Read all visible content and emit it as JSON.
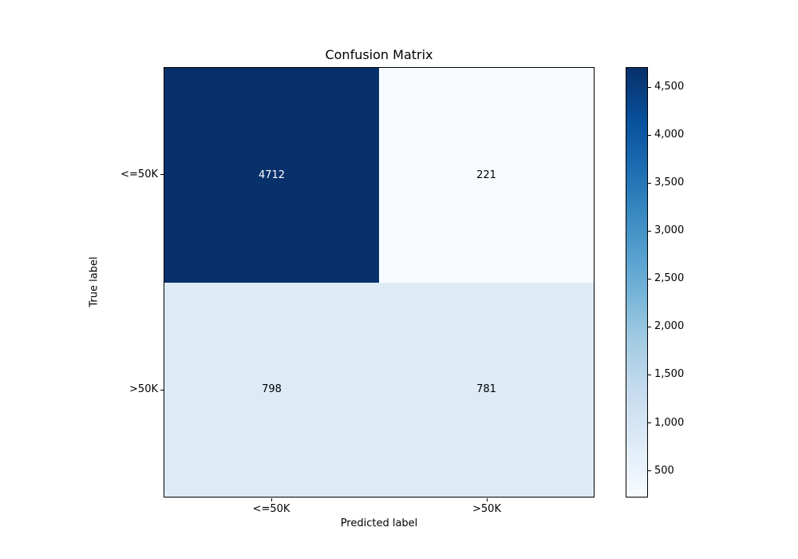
{
  "chart_data": {
    "type": "heatmap",
    "title": "Confusion Matrix",
    "xlabel": "Predicted label",
    "ylabel": "True label",
    "classes": [
      "<=50K",
      ">50K"
    ],
    "x_tick_labels": [
      "<=50K",
      ">50K"
    ],
    "y_tick_labels": [
      "<=50K",
      ">50K"
    ],
    "matrix": [
      [
        4712,
        221
      ],
      [
        798,
        781
      ]
    ],
    "vmin": 221,
    "vmax": 4712,
    "colormap": "Blues",
    "grid": false,
    "cells": [
      {
        "row": "<=50K",
        "col": "<=50K",
        "value": 4712,
        "label": "4712",
        "bg": "#08306b",
        "fg": "#ffffff"
      },
      {
        "row": "<=50K",
        "col": ">50K",
        "value": 221,
        "label": "221",
        "bg": "#f7fbff",
        "fg": "#000000"
      },
      {
        "row": ">50K",
        "col": "<=50K",
        "value": 798,
        "label": "798",
        "bg": "#ddebf7",
        "fg": "#000000"
      },
      {
        "row": ">50K",
        "col": ">50K",
        "value": 781,
        "label": "781",
        "bg": "#deebf7",
        "fg": "#000000"
      }
    ],
    "colorbar": {
      "position": "right",
      "ticks": [
        {
          "value": 500,
          "label": "500"
        },
        {
          "value": 1000,
          "label": "1,000"
        },
        {
          "value": 1500,
          "label": "1,500"
        },
        {
          "value": 2000,
          "label": "2,000"
        },
        {
          "value": 2500,
          "label": "2,500"
        },
        {
          "value": 3000,
          "label": "3,000"
        },
        {
          "value": 3500,
          "label": "3,500"
        },
        {
          "value": 4000,
          "label": "4,000"
        },
        {
          "value": 4500,
          "label": "4,500"
        }
      ],
      "gradient_top_to_bottom": [
        {
          "pos": "0%",
          "color": "#08306b"
        },
        {
          "pos": "12.5%",
          "color": "#08519c"
        },
        {
          "pos": "25%",
          "color": "#2171b5"
        },
        {
          "pos": "37.5%",
          "color": "#4292c6"
        },
        {
          "pos": "50%",
          "color": "#6baed6"
        },
        {
          "pos": "62.5%",
          "color": "#9ecae1"
        },
        {
          "pos": "75%",
          "color": "#c6dbef"
        },
        {
          "pos": "87.5%",
          "color": "#deebf7"
        },
        {
          "pos": "100%",
          "color": "#f7fbff"
        }
      ]
    }
  }
}
